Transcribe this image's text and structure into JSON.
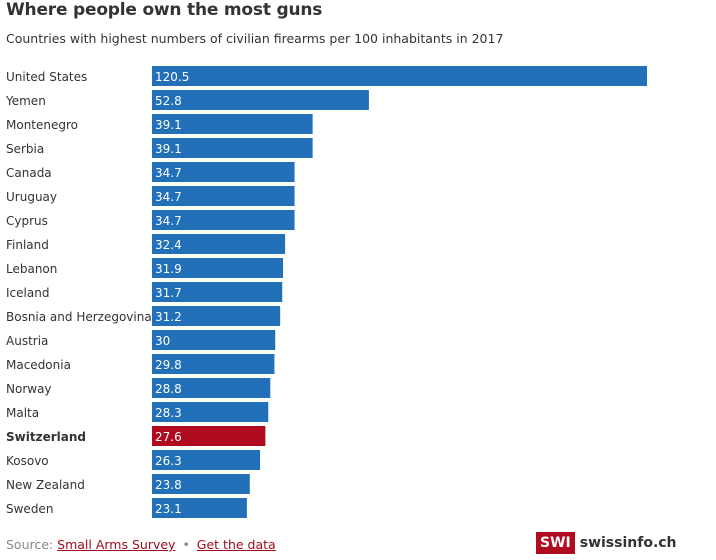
{
  "chart_data": {
    "type": "bar",
    "orientation": "horizontal",
    "title": "Where people own the most guns",
    "subtitle": "Countries with highest numbers of civilian firearms per 100 inhabitants in 2017",
    "xlabel": "",
    "ylabel": "",
    "xlim": [
      0,
      120.5
    ],
    "grid": false,
    "categories": [
      "United States",
      "Yemen",
      "Montenegro",
      "Serbia",
      "Canada",
      "Uruguay",
      "Cyprus",
      "Finland",
      "Lebanon",
      "Iceland",
      "Bosnia and Herzegovina",
      "Austria",
      "Macedonia",
      "Norway",
      "Malta",
      "Switzerland",
      "Kosovo",
      "New Zealand",
      "Sweden"
    ],
    "values": [
      120.5,
      52.8,
      39.1,
      39.1,
      34.7,
      34.7,
      34.7,
      32.4,
      31.9,
      31.7,
      31.2,
      30,
      29.8,
      28.8,
      28.3,
      27.6,
      26.3,
      23.8,
      23.1
    ],
    "value_labels": [
      "120.5",
      "52.8",
      "39.1",
      "39.1",
      "34.7",
      "34.7",
      "34.7",
      "32.4",
      "31.9",
      "31.7",
      "31.2",
      "30",
      "29.8",
      "28.8",
      "28.3",
      "27.6",
      "26.3",
      "23.8",
      "23.1"
    ],
    "highlight": "Switzerland",
    "colors": {
      "default": "#2170b8",
      "highlight": "#b00b1e"
    }
  },
  "footer": {
    "source_prefix": "Source:",
    "source_link": "Small Arms Survey",
    "separator": "•",
    "data_link": "Get the data"
  },
  "logo": {
    "box": "SWI",
    "text": "swissinfo.ch"
  }
}
